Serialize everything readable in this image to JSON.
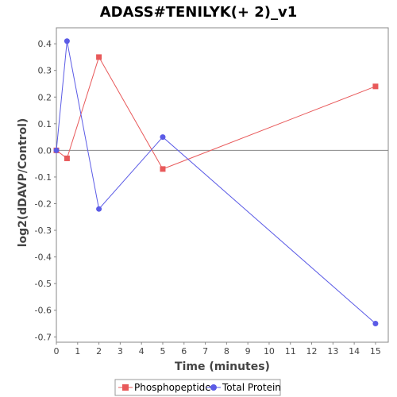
{
  "chart_data": {
    "type": "line",
    "title": "ADASS#TENILYK(+ 2)_v1",
    "xlabel": "Time (minutes)",
    "ylabel": "log2(dDAVP/Control)",
    "xlim": [
      0,
      15.6
    ],
    "ylim": [
      -0.72,
      0.46
    ],
    "x_ticks": [
      0,
      1,
      2,
      3,
      4,
      5,
      6,
      7,
      8,
      9,
      10,
      11,
      12,
      13,
      14,
      15
    ],
    "y_ticks": [
      0.4,
      0.3,
      0.2,
      0.1,
      0.0,
      -0.1,
      -0.2,
      -0.3,
      -0.4,
      -0.5,
      -0.6,
      -0.7
    ],
    "y_tick_labels": [
      "0.4",
      "0.3",
      "0.2",
      "0.1",
      "0.0",
      "-0.1",
      "-0.2",
      "-0.3",
      "-0.4",
      "-0.5",
      "-0.6",
      "-0.7"
    ],
    "grid": false,
    "zero_line": true,
    "legend_position": "bottom",
    "series": [
      {
        "name": "Phosphopeptide",
        "color": "#e8595a",
        "marker": "square",
        "x": [
          0,
          0.5,
          2,
          5,
          15
        ],
        "y": [
          0.0,
          -0.03,
          0.35,
          -0.07,
          0.24
        ]
      },
      {
        "name": "Total Protein",
        "color": "#5b5be6",
        "marker": "circle",
        "x": [
          0,
          0.5,
          2,
          5,
          15
        ],
        "y": [
          0.0,
          0.41,
          -0.22,
          0.05,
          -0.65
        ]
      }
    ]
  }
}
